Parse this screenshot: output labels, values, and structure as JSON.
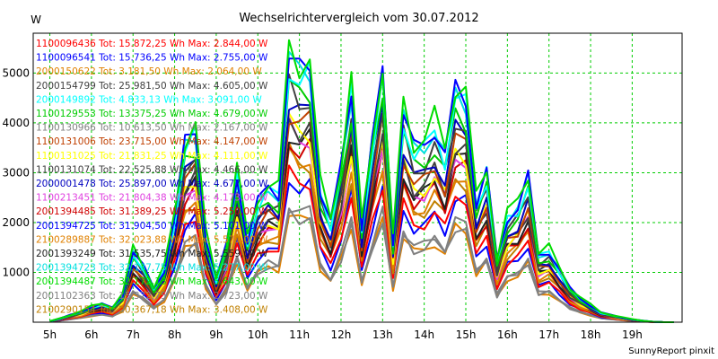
{
  "chart_data": {
    "type": "line",
    "title": "Wechselrichtervergleich vom 30.07.2012",
    "ylabel": "W",
    "xlabel": "",
    "footer": "SunnyReport pinxit",
    "xlim": [
      4.6,
      20.2
    ],
    "ylim": [
      0,
      5800
    ],
    "grid": true,
    "legend_position": "top-left",
    "x_ticks": [
      {
        "value": 5,
        "label": "5h"
      },
      {
        "value": 6,
        "label": "6h"
      },
      {
        "value": 7,
        "label": "7h"
      },
      {
        "value": 8,
        "label": "8h"
      },
      {
        "value": 9,
        "label": "9h"
      },
      {
        "value": 10,
        "label": "10h"
      },
      {
        "value": 11,
        "label": "11h"
      },
      {
        "value": 12,
        "label": "12h"
      },
      {
        "value": 13,
        "label": "13h"
      },
      {
        "value": 14,
        "label": "14h"
      },
      {
        "value": 15,
        "label": "15h"
      },
      {
        "value": 16,
        "label": "16h"
      },
      {
        "value": 17,
        "label": "17h"
      },
      {
        "value": 18,
        "label": "18h"
      },
      {
        "value": 19,
        "label": "19h"
      }
    ],
    "y_ticks": [
      {
        "value": 1000,
        "label": "1000"
      },
      {
        "value": 2000,
        "label": "2000"
      },
      {
        "value": 3000,
        "label": "3000"
      },
      {
        "value": 4000,
        "label": "4000"
      },
      {
        "value": 5000,
        "label": "5000"
      }
    ],
    "x": [
      5.0,
      5.25,
      5.5,
      5.75,
      6.0,
      6.25,
      6.5,
      6.75,
      7.0,
      7.25,
      7.5,
      7.75,
      8.0,
      8.25,
      8.5,
      8.75,
      9.0,
      9.25,
      9.5,
      9.75,
      10.0,
      10.25,
      10.5,
      10.75,
      11.0,
      11.25,
      11.5,
      11.75,
      12.0,
      12.25,
      12.5,
      12.75,
      13.0,
      13.25,
      13.5,
      13.75,
      14.0,
      14.25,
      14.5,
      14.75,
      15.0,
      15.25,
      15.5,
      15.75,
      16.0,
      16.25,
      16.5,
      16.75,
      17.0,
      17.25,
      17.5,
      17.75,
      18.0,
      18.25,
      18.5,
      18.75,
      19.0,
      19.25,
      19.5,
      19.75,
      20.0
    ],
    "series": [
      {
        "name": "1100096436",
        "total": "Tot: 15.872,25 Wh",
        "max": "Max: 2.844,00 W",
        "color": "#ff0000",
        "scale": 0.535
      },
      {
        "name": "1100096541",
        "total": "Tot: 15.736,25 Wh",
        "max": "Max: 2.755,00 W",
        "color": "#0000ff",
        "scale": 0.52
      },
      {
        "name": "2000150622",
        "total": "Tot: 3.181,50 Wh",
        "max": "Max: 2.064,00 W",
        "color": "#e08000",
        "scale": 0.39
      },
      {
        "name": "2000154799",
        "total": "Tot: 25.981,50 Wh",
        "max": "Max: 4.605,00 W",
        "color": "#404040",
        "scale": 0.85
      },
      {
        "name": "2000149892",
        "total": "Tot: 4.833,13 Wh",
        "max": "Max: 3.091,00 W",
        "color": "#00ffff",
        "scale": 0.93
      },
      {
        "name": "1100129553",
        "total": "Tot: 13.375,25 Wh",
        "max": "Max: 4.679,00 W",
        "color": "#00cc00",
        "scale": 0.86
      },
      {
        "name": "1100130966",
        "total": "Tot: 10.613,50 Wh",
        "max": "Max: 2.167,00 W",
        "color": "#808080",
        "scale": 0.4
      },
      {
        "name": "1100131006",
        "total": "Tot: 23.715,00 Wh",
        "max": "Max: 4.147,00 W",
        "color": "#c04000",
        "scale": 0.76
      },
      {
        "name": "1100131025",
        "total": "Tot: 21.831,25 Wh",
        "max": "Max: 4.111,00 W",
        "color": "#ffff00",
        "scale": 0.72
      },
      {
        "name": "1100131074",
        "total": "Tot: 22.525,88 Wh",
        "max": "Max: 4.466,00 W",
        "color": "#404040",
        "scale": 0.74
      },
      {
        "name": "2000001478",
        "total": "Tot: 25.897,00 Wh",
        "max": "Max: 4.677,00 W",
        "color": "#0000c0",
        "scale": 0.8
      },
      {
        "name": "1100213451",
        "total": "Tot: 21.804,38 Wh",
        "max": "Max: 4.173,00 W",
        "color": "#e040e0",
        "scale": 0.7
      },
      {
        "name": "2001394485",
        "total": "Tot: 31.389,25 Wh",
        "max": "Max: 5.250,00 W",
        "color": "#d00000",
        "scale": 0.66
      },
      {
        "name": "2001394725",
        "total": "Tot: 31.904,50 Wh",
        "max": "Max: 5.101,00 W",
        "color": "#0000ff",
        "scale": 0.96
      },
      {
        "name": "2100289887",
        "total": "Tot: 32.023,88 Wh",
        "max": "Max: 5.579,00 W",
        "color": "#e08000",
        "scale": 0.62
      },
      {
        "name": "2001393249",
        "total": "Tot: 31.535,75 Wh",
        "max": "Max: 5.559,00 W",
        "color": "#202020",
        "scale": 0.69
      },
      {
        "name": "2001394723",
        "total": "Tot: 32.137,75 Wh",
        "max": "Max: 5.277,00 W",
        "color": "#00e0e0",
        "scale": 0.95
      },
      {
        "name": "2001394487",
        "total": "Tot: 32.172,13 Wh",
        "max": "Max: 5.643,00 W",
        "color": "#00dd00",
        "scale": 1.0
      },
      {
        "name": "2001102363",
        "total": "Tot: 15.372,75 Wh",
        "max": "Max: 2.723,00 W",
        "color": "#808080",
        "scale": 0.42
      },
      {
        "name": "2100290154",
        "total": "Tot: 20.367,18 Wh",
        "max": "Max: 3.408,00 W",
        "color": "#c08000",
        "scale": 0.6
      }
    ],
    "base_curve": [
      20,
      80,
      150,
      220,
      320,
      380,
      300,
      560,
      1500,
      1150,
      700,
      1100,
      2200,
      3700,
      4000,
      1800,
      900,
      1600,
      3100,
      1700,
      2500,
      2800,
      2700,
      5550,
      5200,
      5300,
      2800,
      2100,
      3200,
      4900,
      2000,
      3700,
      5200,
      1700,
      4400,
      3600,
      3700,
      4100,
      3500,
      4800,
      4650,
      2500,
      3100,
      1300,
      2200,
      2400,
      3000,
      1400,
      1500,
      1100,
      700,
      500,
      350,
      200,
      150,
      100,
      60,
      30,
      10,
      0,
      0
    ]
  }
}
